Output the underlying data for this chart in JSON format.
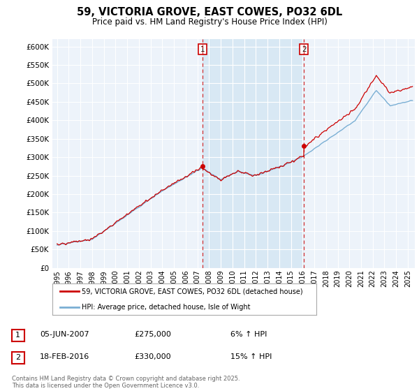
{
  "title": "59, VICTORIA GROVE, EAST COWES, PO32 6DL",
  "subtitle": "Price paid vs. HM Land Registry's House Price Index (HPI)",
  "ylim": [
    0,
    620000
  ],
  "yticks": [
    0,
    50000,
    100000,
    150000,
    200000,
    250000,
    300000,
    350000,
    400000,
    450000,
    500000,
    550000,
    600000
  ],
  "ytick_labels": [
    "£0",
    "£50K",
    "£100K",
    "£150K",
    "£200K",
    "£250K",
    "£300K",
    "£350K",
    "£400K",
    "£450K",
    "£500K",
    "£550K",
    "£600K"
  ],
  "red_line_color": "#cc0000",
  "blue_line_color": "#7aafd4",
  "shade_color": "#d8e8f4",
  "grid_color": "#cccccc",
  "background_color": "#ffffff",
  "plot_bg_color": "#edf3fa",
  "legend_line1": "59, VICTORIA GROVE, EAST COWES, PO32 6DL (detached house)",
  "legend_line2": "HPI: Average price, detached house, Isle of Wight",
  "annotation1_date": "05-JUN-2007",
  "annotation1_price": "£275,000",
  "annotation1_hpi": "6% ↑ HPI",
  "annotation2_date": "18-FEB-2016",
  "annotation2_price": "£330,000",
  "annotation2_hpi": "15% ↑ HPI",
  "footnote": "Contains HM Land Registry data © Crown copyright and database right 2025.\nThis data is licensed under the Open Government Licence v3.0.",
  "vline1_x": 2007.42,
  "vline2_x": 2016.12,
  "sale1_x": 2007.42,
  "sale1_y": 275000,
  "sale2_x": 2016.12,
  "sale2_y": 330000,
  "xlim_start": 1994.6,
  "xlim_end": 2025.6
}
